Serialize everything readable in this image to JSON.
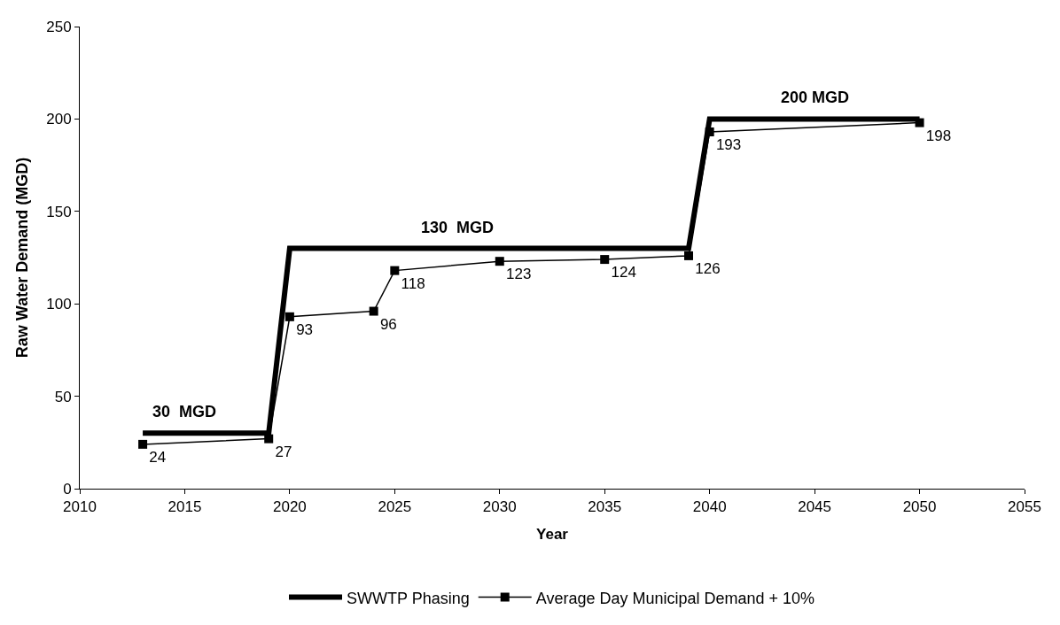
{
  "chart_data": {
    "type": "line",
    "xlabel": "Year",
    "ylabel": "Raw Water Demand (MGD)",
    "xlim": [
      2010,
      2055
    ],
    "xticks": [
      2010,
      2015,
      2020,
      2025,
      2030,
      2035,
      2040,
      2045,
      2050,
      2055
    ],
    "ylim": [
      0,
      250
    ],
    "yticks": [
      0,
      50,
      100,
      150,
      200,
      250
    ],
    "legend": "bottom",
    "series": [
      {
        "name": "SWWTP Phasing",
        "color": "#000000",
        "x": [
          2013,
          2019,
          2020,
          2039,
          2040,
          2050
        ],
        "values": [
          30,
          30,
          130,
          130,
          200,
          200
        ],
        "marker": "none"
      },
      {
        "name": "Average Day Municipal Demand + 10%",
        "color": "#000000",
        "x": [
          2013,
          2019,
          2020,
          2024,
          2025,
          2030,
          2035,
          2039,
          2040,
          2050
        ],
        "values": [
          24,
          27,
          93,
          96,
          118,
          123,
          124,
          126,
          193,
          198
        ],
        "marker": "square",
        "data_labels": true
      }
    ],
    "annotations": [
      {
        "text": "30  MGD",
        "x": 2015,
        "y": 30
      },
      {
        "text": "130  MGD",
        "x": 2028,
        "y": 130
      },
      {
        "text": "200 MGD",
        "x": 2045,
        "y": 200
      }
    ]
  }
}
